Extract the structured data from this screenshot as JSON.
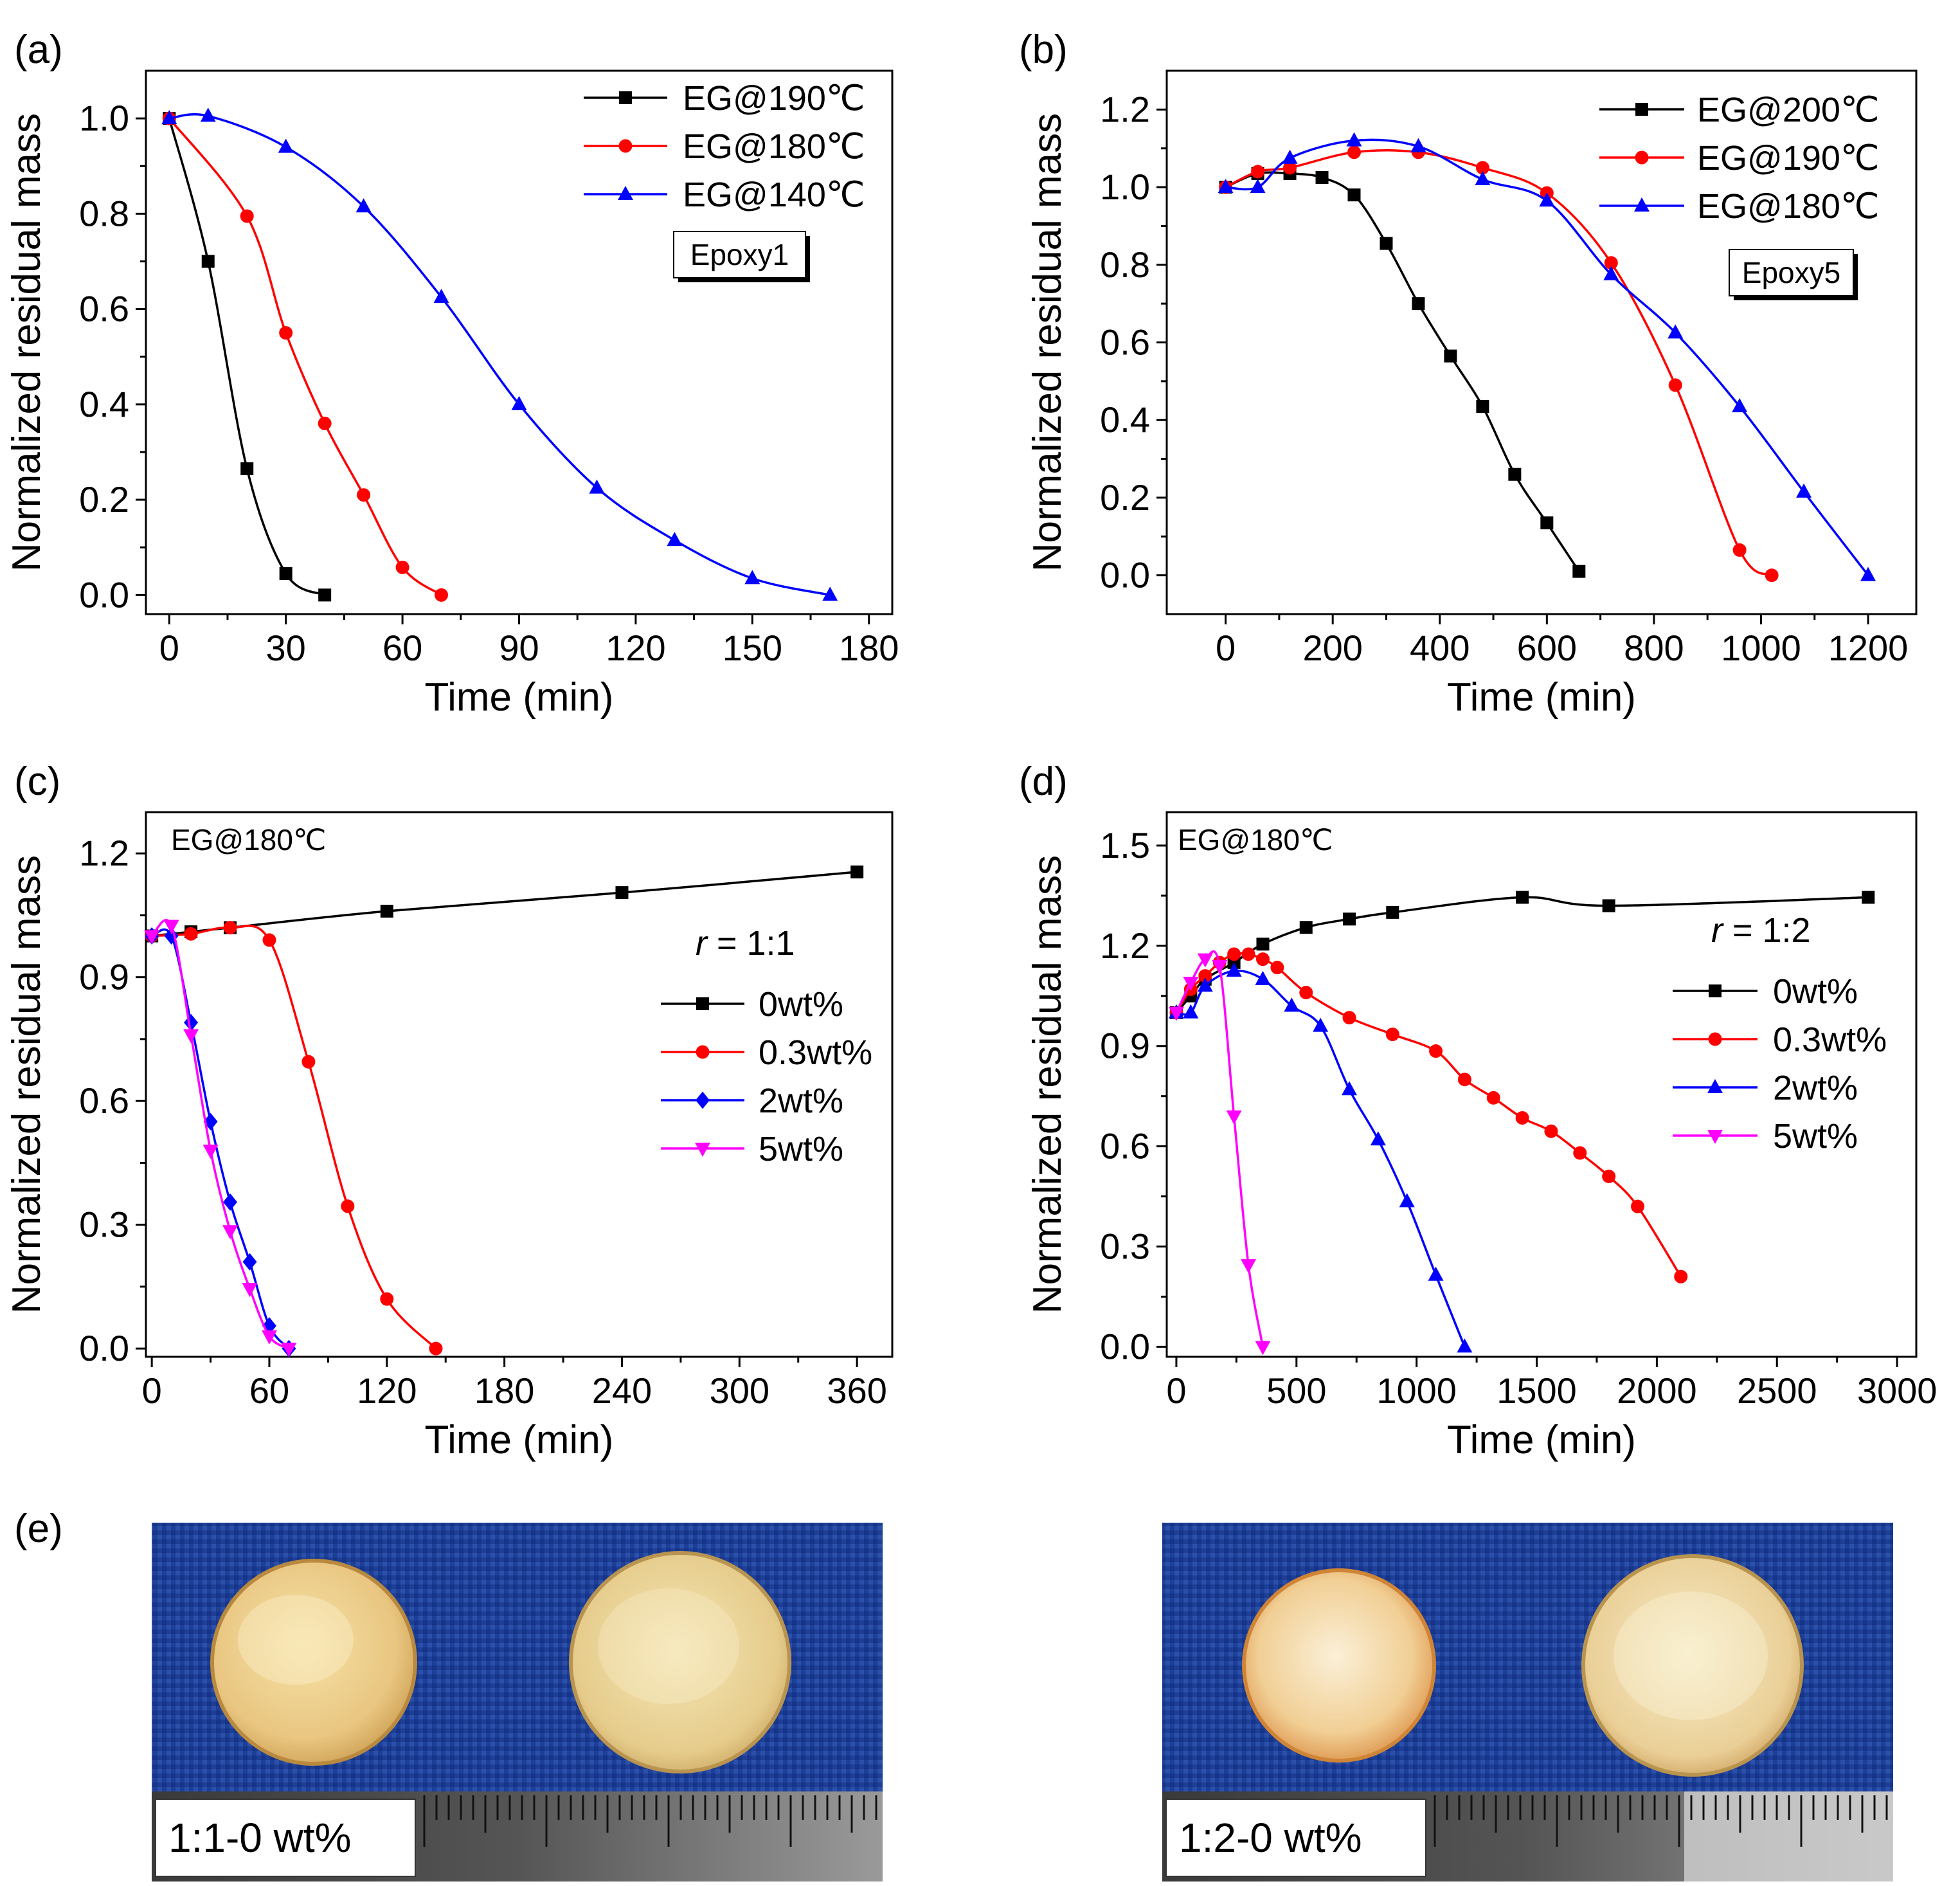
{
  "chart_data": [
    {
      "panel": "(a)",
      "type": "line",
      "xlabel": "Time (min)",
      "ylabel": "Normalized residual mass",
      "xlim": [
        -6,
        186
      ],
      "ylim": [
        -0.04,
        1.1
      ],
      "xticks": [
        0,
        30,
        60,
        90,
        120,
        150,
        180
      ],
      "yticks": [
        0.0,
        0.2,
        0.4,
        0.6,
        0.8,
        1.0
      ],
      "ytick_decimals": 1,
      "legend_position": "top-right",
      "annotation": "Epoxy1",
      "series": [
        {
          "name": "EG@190℃",
          "color": "#000000",
          "marker": "square",
          "x": [
            0,
            10,
            20,
            30,
            40
          ],
          "y": [
            1.0,
            0.7,
            0.265,
            0.045,
            0.0
          ]
        },
        {
          "name": "EG@180℃",
          "color": "#ff0000",
          "marker": "circle",
          "x": [
            0,
            20,
            30,
            40,
            50,
            60,
            70
          ],
          "y": [
            1.0,
            0.795,
            0.55,
            0.36,
            0.21,
            0.058,
            0.0
          ]
        },
        {
          "name": "EG@140℃",
          "color": "#0000ff",
          "marker": "triangle-up",
          "x": [
            0,
            10,
            30,
            50,
            70,
            90,
            110,
            130,
            150,
            170
          ],
          "y": [
            1.0,
            1.005,
            0.94,
            0.815,
            0.625,
            0.4,
            0.225,
            0.115,
            0.035,
            0.0
          ]
        }
      ]
    },
    {
      "panel": "(b)",
      "type": "line",
      "xlabel": "Time (min)",
      "ylabel": "Normalized residual mass",
      "xlim": [
        -110,
        1290
      ],
      "ylim": [
        -0.1,
        1.3
      ],
      "xticks": [
        0,
        200,
        400,
        600,
        800,
        1000,
        1200
      ],
      "yticks": [
        0.0,
        0.2,
        0.4,
        0.6,
        0.8,
        1.0,
        1.2
      ],
      "ytick_decimals": 1,
      "legend_position": "top-right",
      "annotation": "Epoxy5",
      "series": [
        {
          "name": "EG@200℃",
          "color": "#000000",
          "marker": "square",
          "x": [
            0,
            60,
            120,
            180,
            240,
            300,
            360,
            420,
            480,
            540,
            600,
            660
          ],
          "y": [
            1.0,
            1.035,
            1.035,
            1.025,
            0.98,
            0.855,
            0.7,
            0.565,
            0.435,
            0.26,
            0.135,
            0.01
          ]
        },
        {
          "name": "EG@190℃",
          "color": "#ff0000",
          "marker": "circle",
          "x": [
            0,
            60,
            120,
            240,
            360,
            480,
            600,
            720,
            840,
            960,
            1020
          ],
          "y": [
            1.0,
            1.04,
            1.05,
            1.09,
            1.09,
            1.05,
            0.985,
            0.805,
            0.49,
            0.065,
            0.0
          ]
        },
        {
          "name": "EG@180℃",
          "color": "#0000ff",
          "marker": "triangle-up",
          "x": [
            0,
            60,
            120,
            240,
            360,
            480,
            600,
            720,
            840,
            960,
            1080,
            1200
          ],
          "y": [
            1.0,
            1.0,
            1.075,
            1.12,
            1.105,
            1.02,
            0.965,
            0.775,
            0.625,
            0.435,
            0.215,
            0.0
          ]
        }
      ]
    },
    {
      "panel": "(c)",
      "type": "line",
      "xlabel": "Time (min)",
      "ylabel": "Normalized residual mass",
      "xlim": [
        -3,
        378
      ],
      "ylim": [
        -0.02,
        1.3
      ],
      "xticks": [
        0,
        60,
        120,
        180,
        240,
        300,
        360
      ],
      "yticks": [
        0.0,
        0.3,
        0.6,
        0.9,
        1.2
      ],
      "ytick_decimals": 1,
      "legend_position": "right",
      "annotation": "EG@180℃",
      "legend_title": "r = 1:1",
      "legend_title_italic": "r",
      "legend_title_rest": " = 1:1",
      "series": [
        {
          "name": "0wt%",
          "color": "#000000",
          "marker": "square",
          "x": [
            0,
            20,
            40,
            120,
            240,
            360
          ],
          "y": [
            1.0,
            1.01,
            1.02,
            1.06,
            1.105,
            1.155
          ]
        },
        {
          "name": "0.3wt%",
          "color": "#ff0000",
          "marker": "circle",
          "x": [
            0,
            20,
            40,
            60,
            80,
            100,
            120,
            145
          ],
          "y": [
            1.0,
            1.005,
            1.02,
            0.99,
            0.695,
            0.345,
            0.12,
            0.0
          ]
        },
        {
          "name": "2wt%",
          "color": "#0000ff",
          "marker": "diamond",
          "x": [
            0,
            10,
            20,
            30,
            40,
            50,
            60,
            70
          ],
          "y": [
            1.0,
            1.0,
            0.79,
            0.55,
            0.355,
            0.21,
            0.055,
            0.0
          ]
        },
        {
          "name": "5wt%",
          "color": "#ff00ff",
          "marker": "triangle-down",
          "x": [
            0,
            10,
            20,
            30,
            40,
            50,
            60,
            70
          ],
          "y": [
            1.0,
            1.025,
            0.76,
            0.48,
            0.285,
            0.145,
            0.03,
            0.0
          ]
        }
      ]
    },
    {
      "panel": "(d)",
      "type": "line",
      "xlabel": "Time (min)",
      "ylabel": "Normalized residual mass",
      "xlim": [
        -40,
        3080
      ],
      "ylim": [
        -0.03,
        1.6
      ],
      "xticks": [
        0,
        500,
        1000,
        1500,
        2000,
        2500,
        3000
      ],
      "yticks": [
        0.0,
        0.3,
        0.6,
        0.9,
        1.2,
        1.5
      ],
      "ytick_decimals": 1,
      "legend_position": "right",
      "annotation": "EG@180℃",
      "legend_title": "r = 1:2",
      "legend_title_italic": "r",
      "legend_title_rest": " = 1:2",
      "series": [
        {
          "name": "0wt%",
          "color": "#000000",
          "marker": "square",
          "x": [
            0,
            60,
            120,
            240,
            360,
            540,
            720,
            900,
            1440,
            1800,
            2880
          ],
          "y": [
            1.0,
            1.05,
            1.1,
            1.15,
            1.205,
            1.255,
            1.28,
            1.3,
            1.345,
            1.32,
            1.345
          ]
        },
        {
          "name": "0.3wt%",
          "color": "#ff0000",
          "marker": "circle",
          "x": [
            0,
            60,
            120,
            180,
            240,
            300,
            360,
            420,
            540,
            720,
            900,
            1080,
            1200,
            1320,
            1440,
            1560,
            1680,
            1800,
            1920,
            2100
          ],
          "y": [
            1.0,
            1.07,
            1.11,
            1.15,
            1.175,
            1.175,
            1.16,
            1.135,
            1.06,
            0.985,
            0.935,
            0.885,
            0.8,
            0.745,
            0.685,
            0.645,
            0.58,
            0.51,
            0.42,
            0.21
          ]
        },
        {
          "name": "2wt%",
          "color": "#0000ff",
          "marker": "triangle-up",
          "x": [
            0,
            60,
            120,
            240,
            360,
            480,
            600,
            720,
            840,
            960,
            1080,
            1200
          ],
          "y": [
            1.0,
            1.0,
            1.08,
            1.125,
            1.1,
            1.02,
            0.96,
            0.77,
            0.62,
            0.435,
            0.215,
            0.0
          ]
        },
        {
          "name": "5wt%",
          "color": "#ff00ff",
          "marker": "triangle-down",
          "x": [
            0,
            60,
            120,
            180,
            240,
            300,
            360
          ],
          "y": [
            1.0,
            1.09,
            1.16,
            1.14,
            0.69,
            0.245,
            0.0
          ]
        }
      ]
    }
  ],
  "panel_e": {
    "label": "(e)",
    "captions": [
      "1:1-0 wt%",
      "1:2-0 wt%"
    ]
  }
}
